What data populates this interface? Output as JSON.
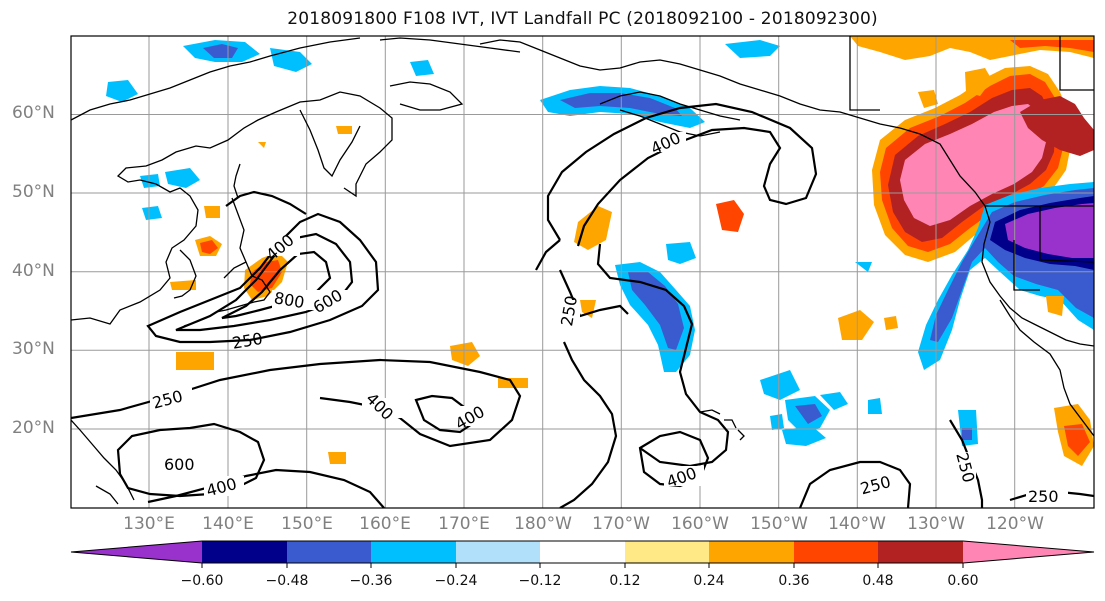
{
  "title": "2018091800 F108 IVT, IVT Landfall PC (2018092100 - 2018092300)",
  "map": {
    "latitude_labels": [
      "60°N",
      "50°N",
      "40°N",
      "30°N",
      "20°N"
    ],
    "longitude_labels": [
      "130°E",
      "140°E",
      "150°E",
      "160°E",
      "170°E",
      "180°W",
      "170°W",
      "160°W",
      "150°W",
      "140°W",
      "130°W",
      "120°W"
    ],
    "contour_levels_labeled": [
      "400",
      "400",
      "600",
      "800",
      "600",
      "250",
      "250",
      "400",
      "400",
      "600",
      "400",
      "250",
      "400",
      "250",
      "250",
      "250"
    ],
    "shading": {
      "colors": {
        "neg_060_below": "#9932cc",
        "neg_048_060": "#00008b",
        "neg_036_048": "#3a5bd0",
        "neg_024_036": "#00bfff",
        "neg_012_024": "#b0e0fa",
        "neutral": "#ffffff",
        "pos_012_024": "#ffe987",
        "pos_024_036": "#ffa500",
        "pos_036_048": "#ff4500",
        "pos_048_060": "#b22222",
        "pos_060_above": "#ff86b4"
      }
    }
  },
  "colorbar": {
    "ticks": [
      "−0.60",
      "−0.48",
      "−0.36",
      "−0.24",
      "−0.12",
      "0.12",
      "0.24",
      "0.36",
      "0.48",
      "0.60"
    ],
    "colors": [
      "#9932cc",
      "#00008b",
      "#3a5bd0",
      "#00bfff",
      "#b0e0fa",
      "#ffffff",
      "#ffe987",
      "#ffa500",
      "#ff4500",
      "#b22222",
      "#ff86b4"
    ]
  }
}
